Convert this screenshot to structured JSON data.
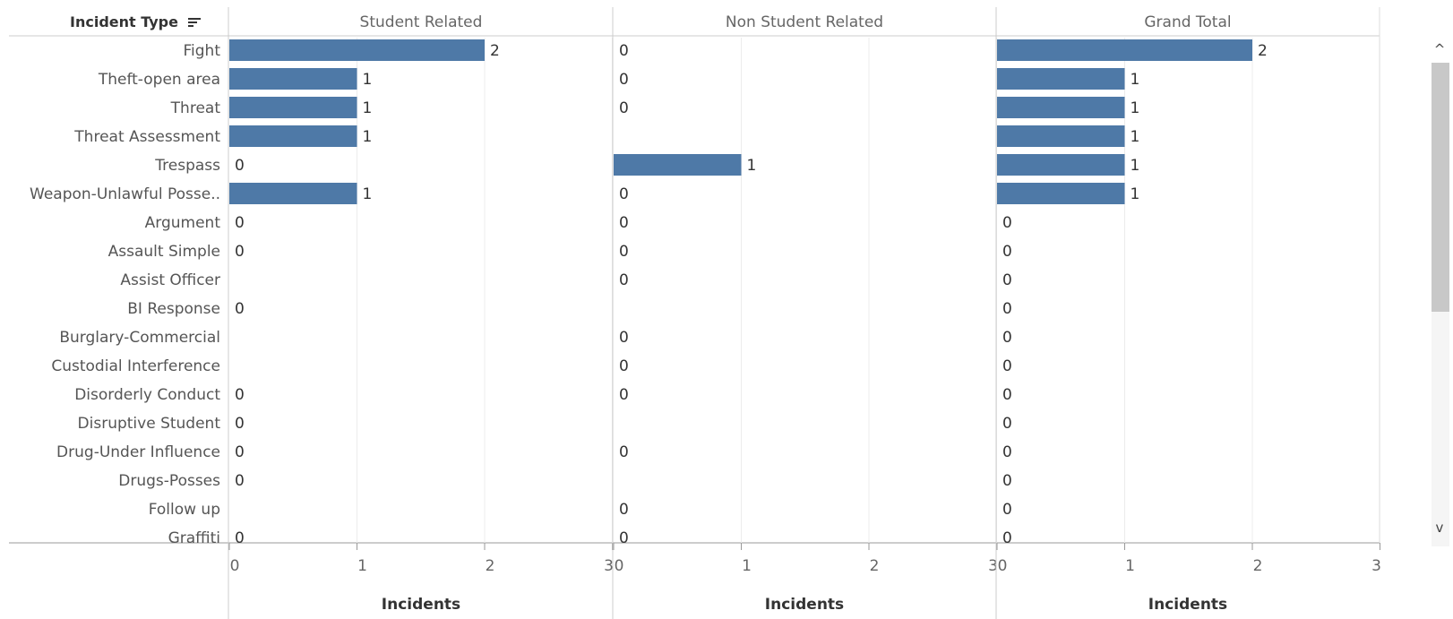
{
  "header": {
    "row_field": "Incident Type",
    "sort_icon": "sort-descending-icon",
    "columns": [
      "Student Related",
      "Non Student Related",
      "Grand Total"
    ]
  },
  "scrollbar": {
    "up_icon": "chevron-up-icon",
    "down_icon": "chevron-down-icon",
    "up_glyph": "^",
    "down_glyph": "v"
  },
  "chart_data": {
    "type": "bar",
    "orientation": "horizontal",
    "title": "",
    "bar_color": "#4e79a7",
    "grid": true,
    "categories": [
      "Fight",
      "Theft-open area",
      "Threat",
      "Threat Assessment",
      "Trespass",
      "Weapon-Unlawful Posse..",
      "Argument",
      "Assault Simple",
      "Assist Officer",
      "BI Response",
      "Burglary-Commercial",
      "Custodial Interference",
      "Disorderly Conduct",
      "Disruptive Student",
      "Drug-Under Influence",
      "Drugs-Posses",
      "Follow up",
      "Graffiti"
    ],
    "series": [
      {
        "name": "Student Related",
        "values": [
          2,
          1,
          1,
          1,
          0,
          1,
          0,
          0,
          null,
          0,
          null,
          null,
          0,
          0,
          0,
          0,
          null,
          0
        ]
      },
      {
        "name": "Non Student Related",
        "values": [
          0,
          0,
          0,
          null,
          1,
          0,
          0,
          0,
          0,
          null,
          0,
          0,
          0,
          null,
          0,
          null,
          0,
          0
        ]
      },
      {
        "name": "Grand Total",
        "values": [
          2,
          1,
          1,
          1,
          1,
          1,
          0,
          0,
          0,
          0,
          0,
          0,
          0,
          0,
          0,
          0,
          0,
          0
        ]
      }
    ],
    "xlabel": "Incidents",
    "xlim": [
      0,
      3
    ],
    "xticks": [
      "0",
      "1",
      "2",
      "3"
    ]
  }
}
